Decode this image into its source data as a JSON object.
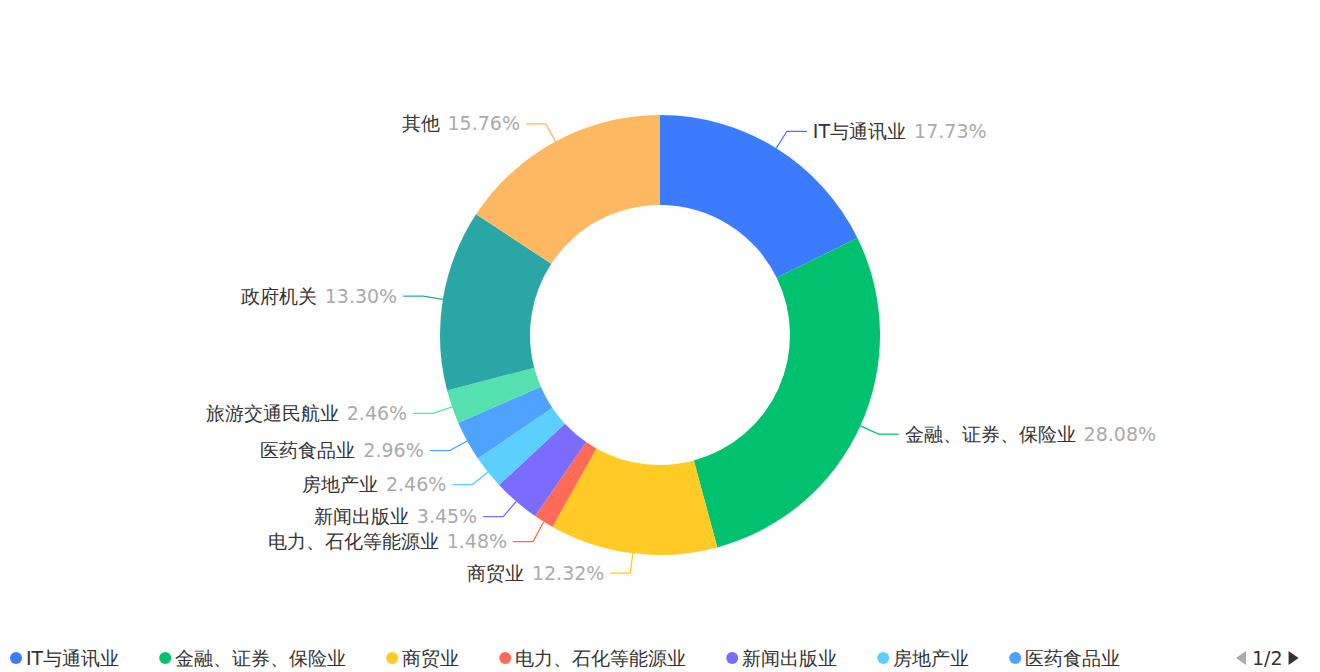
{
  "chart_data": {
    "type": "donut",
    "categories": [
      "IT与通讯业",
      "金融、证券、保险业",
      "商贸业",
      "电力、石化等能源业",
      "新闻出版业",
      "房地产业",
      "医药食品业",
      "旅游交通民航业",
      "政府机关",
      "其他"
    ],
    "values": [
      17.73,
      28.08,
      12.32,
      1.48,
      3.45,
      2.46,
      2.96,
      2.46,
      13.3,
      15.76
    ],
    "value_labels": [
      "17.73%",
      "28.08%",
      "12.32%",
      "1.48%",
      "3.45%",
      "2.46%",
      "2.96%",
      "2.46%",
      "13.30%",
      "15.76%"
    ],
    "colors": [
      "#3a7bff",
      "#00c16e",
      "#ffcb24",
      "#ff6b57",
      "#7b6cff",
      "#5bd0ff",
      "#4da3ff",
      "#55e0b0",
      "#2aa6a6",
      "#ffb862"
    ],
    "data_labels": true,
    "legend": "bottom",
    "legend_page_label": "1/2"
  }
}
